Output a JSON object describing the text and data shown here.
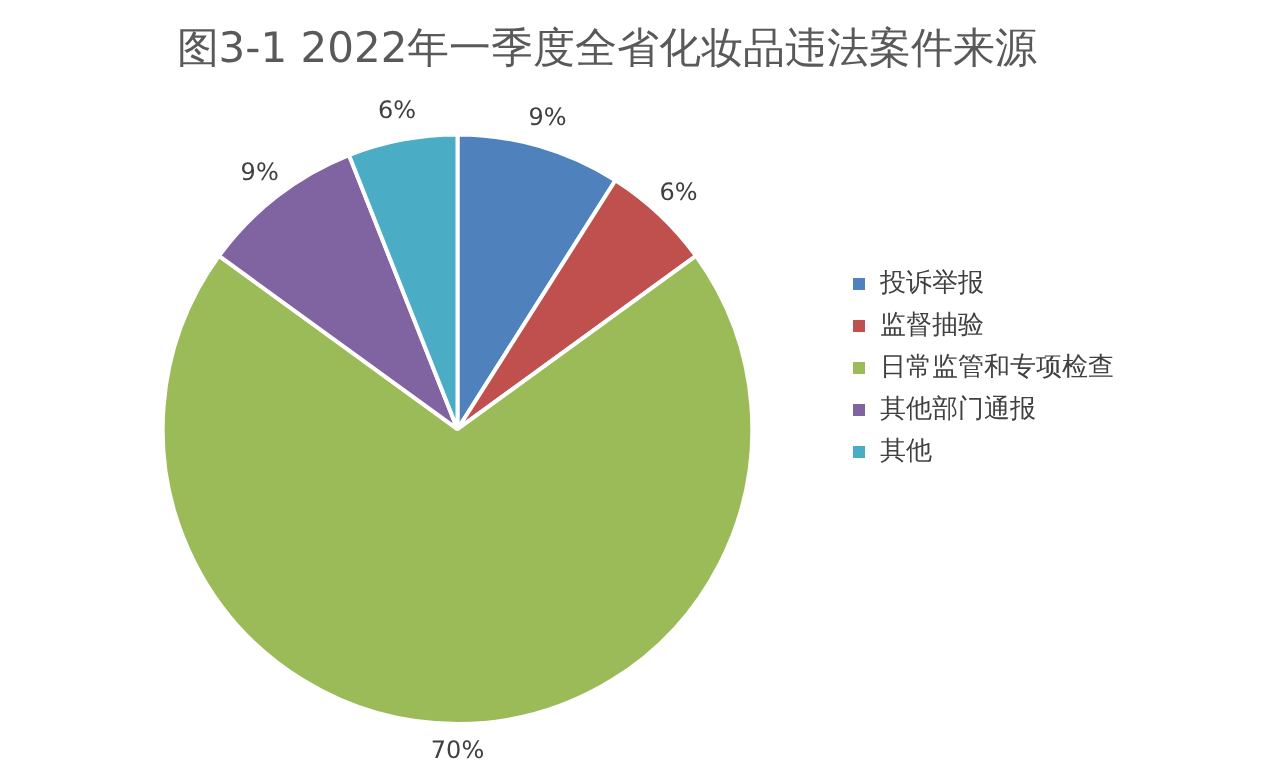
{
  "chart_data": {
    "type": "pie",
    "title": "图3-1 2022年一季度全省化妆品违法案件来源",
    "categories": [
      "投诉举报",
      "监督抽验",
      "日常监管和专项检查",
      "其他部门通报",
      "其他"
    ],
    "values": [
      9,
      6,
      70,
      9,
      6
    ],
    "colors": [
      "#4f81bd",
      "#c0504d",
      "#9bbb59",
      "#8064a2",
      "#4bacc6"
    ],
    "value_labels": [
      "9%",
      "6%",
      "70%",
      "9%",
      "6%"
    ],
    "legend": "right"
  }
}
